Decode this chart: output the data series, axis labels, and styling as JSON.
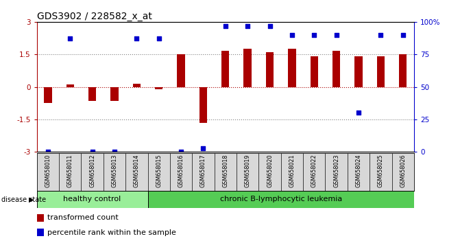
{
  "title": "GDS3902 / 228582_x_at",
  "samples": [
    "GSM658010",
    "GSM658011",
    "GSM658012",
    "GSM658013",
    "GSM658014",
    "GSM658015",
    "GSM658016",
    "GSM658017",
    "GSM658018",
    "GSM658019",
    "GSM658020",
    "GSM658021",
    "GSM658022",
    "GSM658023",
    "GSM658024",
    "GSM658025",
    "GSM658026"
  ],
  "bar_values": [
    -0.75,
    0.1,
    -0.65,
    -0.65,
    0.15,
    -0.12,
    1.5,
    -1.65,
    1.65,
    1.75,
    1.6,
    1.75,
    1.4,
    1.65,
    1.4,
    1.4,
    1.5
  ],
  "dot_values": [
    0,
    87,
    0,
    0,
    87,
    87,
    0,
    3,
    97,
    97,
    97,
    90,
    90,
    90,
    30,
    90,
    90
  ],
  "healthy_count": 5,
  "bar_color": "#aa0000",
  "dot_color": "#0000cc",
  "ylim_left": [
    -3,
    3
  ],
  "ylim_right": [
    0,
    100
  ],
  "dotted_lines_gray": [
    1.5,
    -1.5
  ],
  "dotted_line_red": 0.0,
  "group_labels": [
    "healthy control",
    "chronic B-lymphocytic leukemia"
  ],
  "group_colors": [
    "#99ee99",
    "#55cc55"
  ],
  "disease_state_label": "disease state",
  "legend_items": [
    {
      "label": "transformed count",
      "color": "#aa0000"
    },
    {
      "label": "percentile rank within the sample",
      "color": "#0000cc"
    }
  ],
  "background_color": "#ffffff",
  "right_axis_ticks": [
    0,
    25,
    50,
    75,
    100
  ],
  "right_axis_labels": [
    "0",
    "25",
    "50",
    "75",
    "100%"
  ],
  "left_axis_ticks": [
    -3,
    -1.5,
    0,
    1.5,
    3
  ],
  "left_axis_labels": [
    "-3",
    "-1.5",
    "0",
    "1.5",
    "3"
  ]
}
